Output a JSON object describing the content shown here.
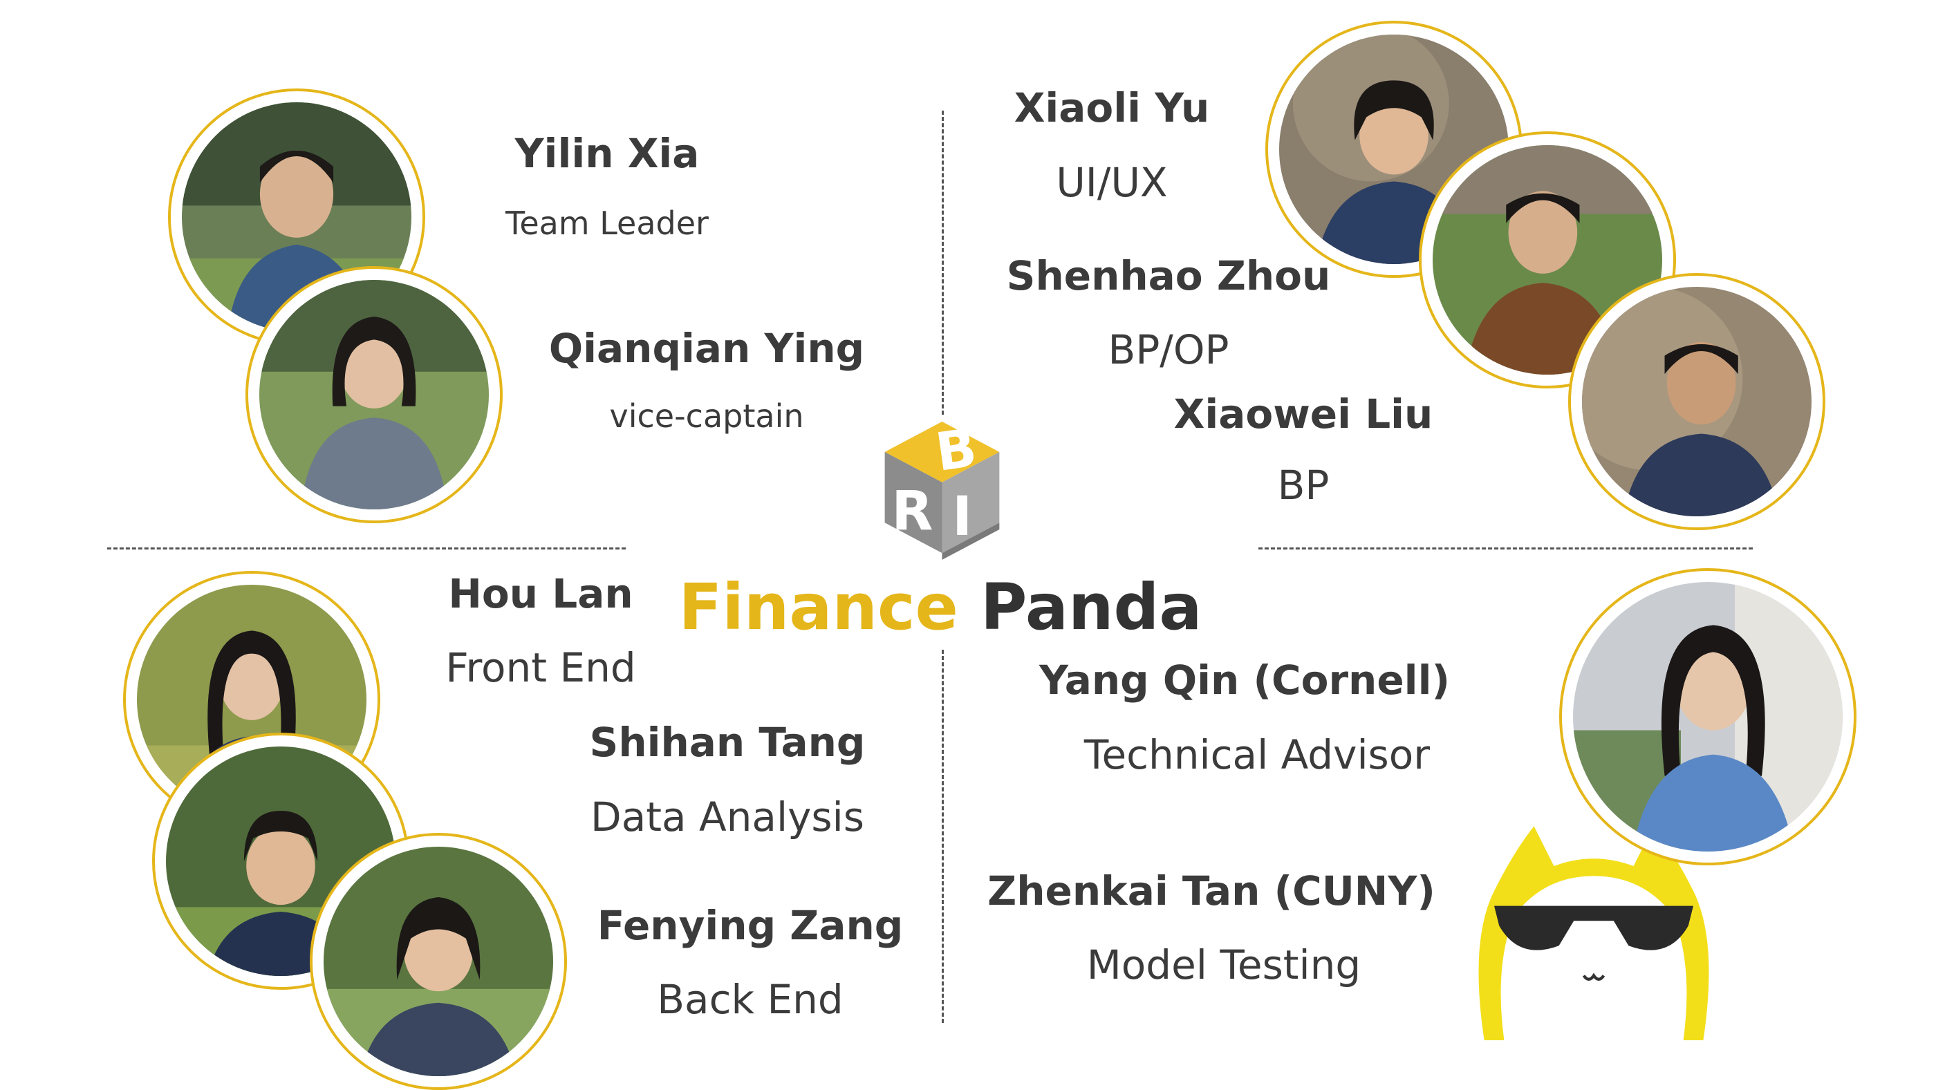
{
  "title": {
    "word1": "Finance",
    "word2": "Panda"
  },
  "logo": {
    "icon": "bri-logo-cube"
  },
  "members": [
    {
      "name": "Yilin Xia",
      "role": "Team Leader"
    },
    {
      "name": "Qianqian Ying",
      "role": "vice-captain"
    },
    {
      "name": "Xiaoli Yu",
      "role": "UI/UX"
    },
    {
      "name": "Shenhao Zhou",
      "role": "BP/OP"
    },
    {
      "name": "Xiaowei Liu",
      "role": "BP"
    },
    {
      "name": "Hou Lan",
      "role": "Front End"
    },
    {
      "name": "Shihan Tang",
      "role": "Data Analysis"
    },
    {
      "name": "Fenying Zang",
      "role": "Back End"
    },
    {
      "name": "Yang Qin  (Cornell)",
      "role": "Technical Advisor"
    },
    {
      "name": "Zhenkai Tan  (CUNY)",
      "role": "Model Testing"
    }
  ],
  "colors": {
    "accent": "#e5b61a",
    "text": "#3b3b3b",
    "mascot": "#f3df19"
  }
}
